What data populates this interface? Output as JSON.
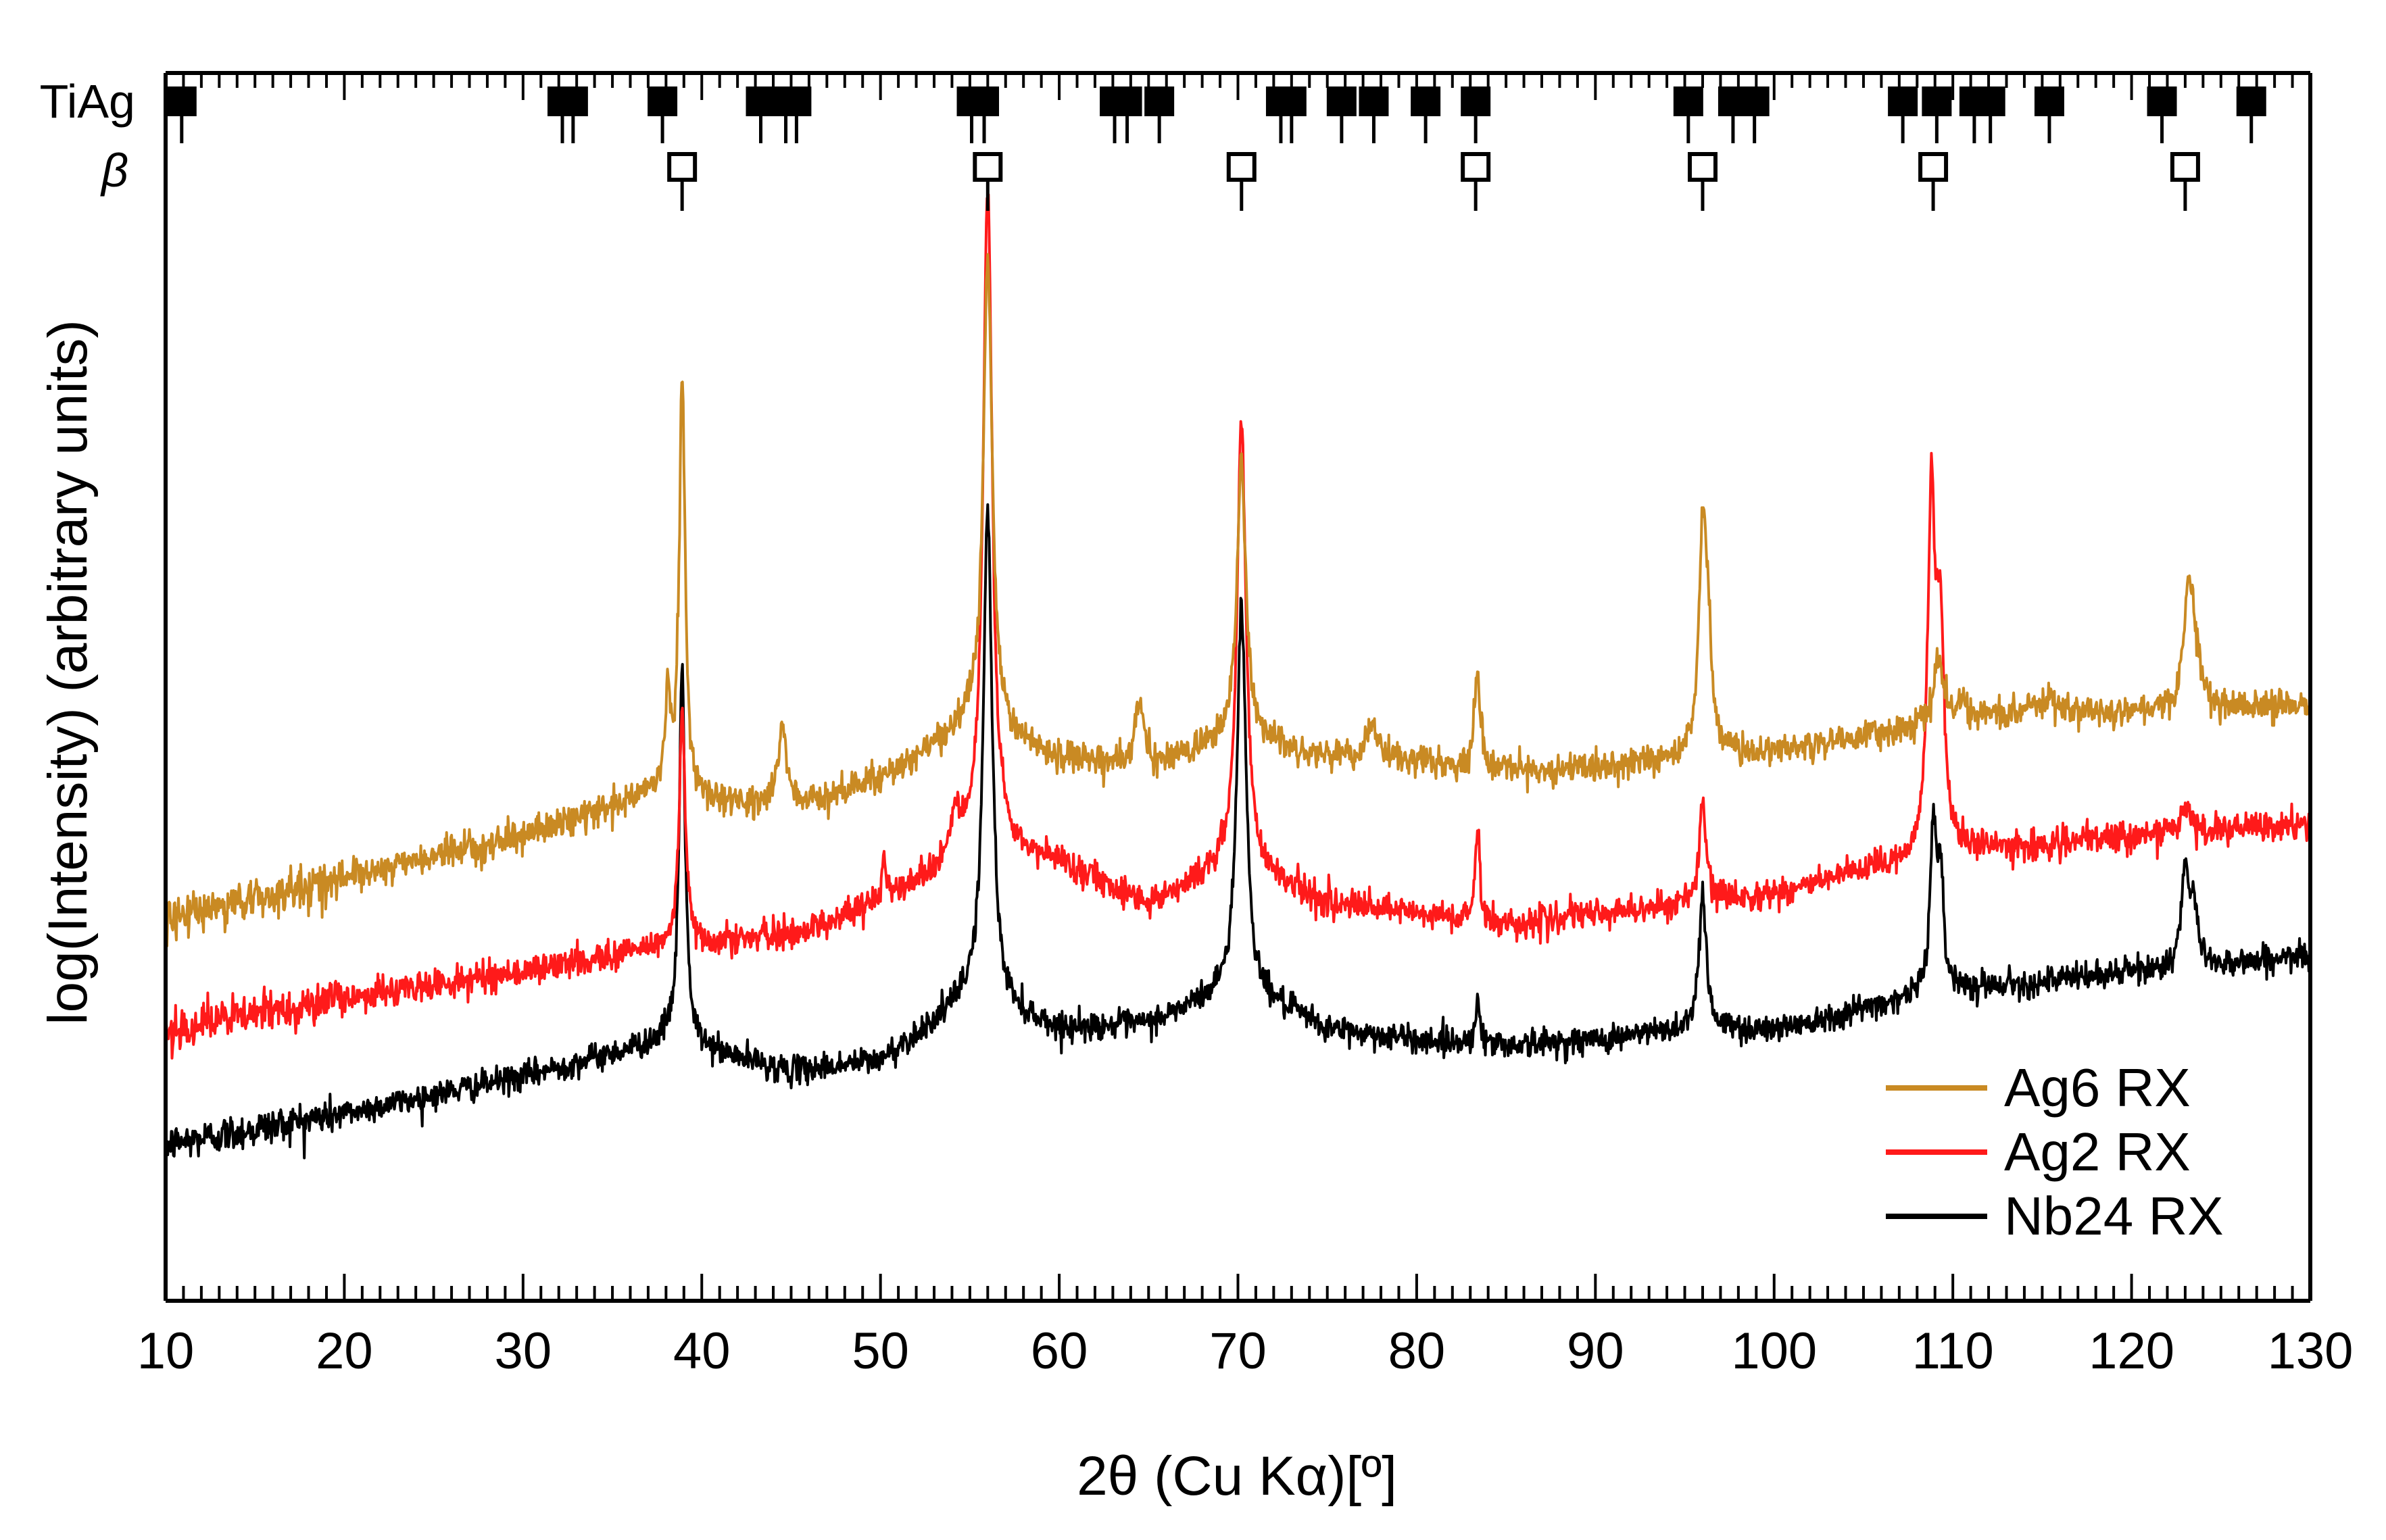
{
  "chart_data": {
    "type": "line",
    "title": "",
    "xlabel": "2θ (Cu Kα)[º]",
    "ylabel": "log(Intensity) (arbitrary units)",
    "xlim": [
      10,
      130
    ],
    "xticks": [
      10,
      20,
      30,
      40,
      50,
      60,
      70,
      80,
      90,
      100,
      110,
      120,
      130
    ],
    "ylim": [
      0,
      100
    ],
    "grid": false,
    "legend_position": "bottom-right",
    "series": [
      {
        "name": "Ag6 RX",
        "color": "#c98a23",
        "base": [
          [
            10,
            33.5
          ],
          [
            20,
            37.5
          ],
          [
            30,
            41.5
          ],
          [
            37,
            45.5
          ],
          [
            45,
            44
          ],
          [
            50,
            47
          ],
          [
            55,
            52
          ],
          [
            60,
            49
          ],
          [
            65,
            48
          ],
          [
            70,
            51
          ],
          [
            75,
            49
          ],
          [
            80,
            48.5
          ],
          [
            85,
            47.5
          ],
          [
            90,
            48
          ],
          [
            95,
            49
          ],
          [
            100,
            49.5
          ],
          [
            105,
            51
          ],
          [
            110,
            52.5
          ],
          [
            120,
            53.5
          ],
          [
            130,
            54
          ]
        ],
        "noise": 1.3,
        "peaks": [
          [
            38.1,
            10,
            0.15
          ],
          [
            38.9,
            40,
            0.2
          ],
          [
            44.5,
            8,
            0.3
          ],
          [
            56.0,
            45,
            0.3
          ],
          [
            64.5,
            6,
            0.3
          ],
          [
            70.2,
            26,
            0.3
          ],
          [
            77.5,
            3.5,
            0.35
          ],
          [
            83.4,
            9,
            0.2
          ],
          [
            96.0,
            20,
            0.25
          ],
          [
            96.3,
            9,
            0.25
          ],
          [
            109.2,
            6,
            0.3
          ],
          [
            110.5,
            1.5,
            0.4
          ],
          [
            115.0,
            1.5,
            1.0
          ],
          [
            123.2,
            11,
            0.3
          ],
          [
            123.5,
            4,
            0.3
          ]
        ]
      },
      {
        "name": "Ag2 RX",
        "color": "#ff1a1a",
        "base": [
          [
            10,
            23
          ],
          [
            20,
            26
          ],
          [
            30,
            28.5
          ],
          [
            38,
            31
          ],
          [
            45,
            32
          ],
          [
            50,
            35
          ],
          [
            55,
            40
          ],
          [
            60,
            39
          ],
          [
            65,
            35
          ],
          [
            70,
            39
          ],
          [
            75,
            35
          ],
          [
            80,
            34
          ],
          [
            85,
            33
          ],
          [
            90,
            34
          ],
          [
            95,
            35
          ],
          [
            100,
            36
          ],
          [
            105,
            38
          ],
          [
            110,
            40
          ],
          [
            115,
            40.5
          ],
          [
            120,
            41.5
          ],
          [
            130,
            42.5
          ]
        ],
        "noise": 1.3,
        "peaks": [
          [
            38.9,
            22,
            0.2
          ],
          [
            50.2,
            5,
            0.15
          ],
          [
            54.2,
            4,
            0.3
          ],
          [
            56.0,
            64,
            0.3
          ],
          [
            70.2,
            42,
            0.3
          ],
          [
            83.4,
            9,
            0.15
          ],
          [
            96.0,
            10,
            0.2
          ],
          [
            108.8,
            33,
            0.25
          ],
          [
            109.3,
            20,
            0.25
          ],
          [
            123.0,
            2.5,
            0.3
          ]
        ]
      },
      {
        "name": "Nb24 RX",
        "color": "#000000",
        "base": [
          [
            10,
            12
          ],
          [
            20,
            15
          ],
          [
            30,
            18.5
          ],
          [
            38,
            22
          ],
          [
            45,
            19
          ],
          [
            50,
            20
          ],
          [
            55,
            26
          ],
          [
            60,
            23
          ],
          [
            65,
            23.5
          ],
          [
            70,
            27
          ],
          [
            75,
            23
          ],
          [
            80,
            22
          ],
          [
            85,
            21.5
          ],
          [
            90,
            22
          ],
          [
            95,
            23
          ],
          [
            100,
            23
          ],
          [
            105,
            25
          ],
          [
            110,
            27
          ],
          [
            115,
            27.5
          ],
          [
            120,
            28.5
          ],
          [
            130,
            30
          ]
        ],
        "noise": 1.2,
        "peaks": [
          [
            38.9,
            36,
            0.2
          ],
          [
            56.0,
            47,
            0.3
          ],
          [
            70.2,
            37,
            0.3
          ],
          [
            83.4,
            4,
            0.15
          ],
          [
            96.0,
            13,
            0.25
          ],
          [
            108.9,
            16,
            0.2
          ],
          [
            109.3,
            10,
            0.2
          ],
          [
            123.0,
            9,
            0.25
          ],
          [
            123.5,
            5,
            0.25
          ]
        ]
      }
    ],
    "reference_markers": [
      {
        "label": "TiAg",
        "style": "filled",
        "positions": [
          10.9,
          32.2,
          32.8,
          37.8,
          43.3,
          44.7,
          45.3,
          55.1,
          55.8,
          63.1,
          63.8,
          65.6,
          72.4,
          73.0,
          75.8,
          77.6,
          80.5,
          83.3,
          95.2,
          97.7,
          98.9,
          107.2,
          109.1,
          111.2,
          112.1,
          115.4,
          121.7,
          126.7
        ]
      },
      {
        "label": "β",
        "style": "open",
        "positions": [
          38.9,
          56.0,
          70.2,
          83.3,
          96.0,
          108.9,
          123.0
        ]
      }
    ]
  }
}
